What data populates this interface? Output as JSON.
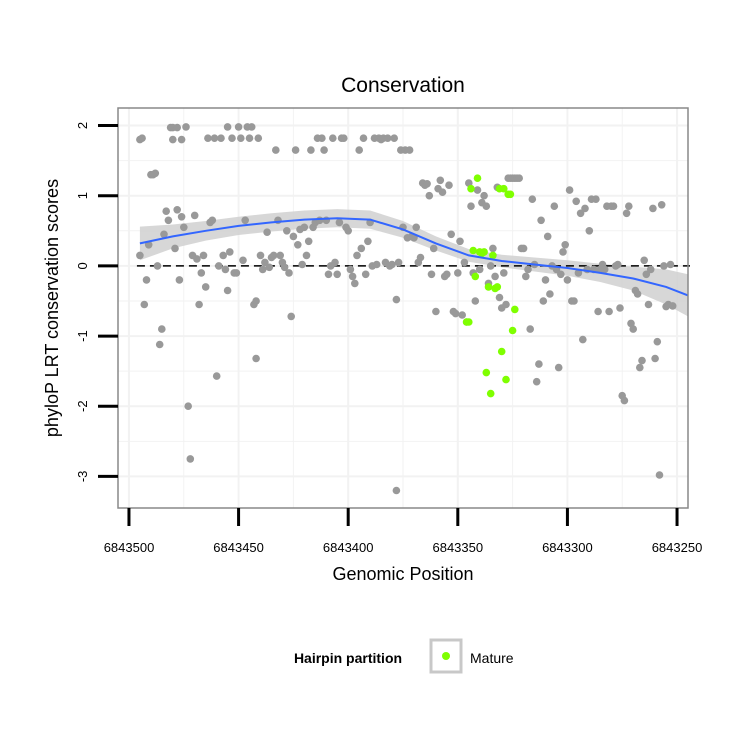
{
  "chart_data": {
    "type": "scatter",
    "title": "Conservation",
    "xlabel": "Genomic Position",
    "ylabel": "phyloP LRT conservation scores",
    "xlim": [
      6843505,
      6843245
    ],
    "ylim": [
      -3.45,
      2.25
    ],
    "x_reversed": true,
    "x_ticks": [
      6843500,
      6843450,
      6843400,
      6843350,
      6843300,
      6843250
    ],
    "x_tick_labels": [
      "6843500",
      "6843450",
      "6843400",
      "6843350",
      "6843300",
      "6843250"
    ],
    "y_ticks": [
      -3,
      -2,
      -1,
      0,
      1,
      2
    ],
    "y_tick_labels": [
      "-3",
      "-2",
      "-1",
      "0",
      "1",
      "2"
    ],
    "reference_line": {
      "y": 0,
      "style": "dashed",
      "color": "#000000"
    },
    "colors": {
      "other": "#999999",
      "mature": "#7fff00",
      "smooth_line": "#3366ff",
      "ribbon": "#d0d0d0",
      "panel_border": "#888888",
      "grid": "#f2f2f2"
    },
    "legend": {
      "title": "Hairpin partition",
      "entries": [
        {
          "label": "Mature",
          "color": "#7fff00"
        }
      ],
      "position": "bottom"
    },
    "smooth": {
      "x": [
        6843495,
        6843480,
        6843465,
        6843450,
        6843435,
        6843420,
        6843405,
        6843390,
        6843375,
        6843360,
        6843345,
        6843330,
        6843315,
        6843300,
        6843285,
        6843270,
        6843255,
        6843245
      ],
      "y": [
        0.32,
        0.42,
        0.5,
        0.57,
        0.62,
        0.66,
        0.68,
        0.66,
        0.52,
        0.32,
        0.15,
        0.07,
        0.02,
        -0.03,
        -0.1,
        -0.18,
        -0.3,
        -0.42
      ],
      "lower": [
        0.08,
        0.25,
        0.36,
        0.44,
        0.49,
        0.53,
        0.55,
        0.53,
        0.4,
        0.22,
        0.06,
        -0.02,
        -0.08,
        -0.14,
        -0.23,
        -0.35,
        -0.55,
        -0.72
      ],
      "upper": [
        0.56,
        0.59,
        0.64,
        0.7,
        0.75,
        0.79,
        0.81,
        0.79,
        0.64,
        0.42,
        0.24,
        0.16,
        0.12,
        0.08,
        0.03,
        -0.01,
        -0.05,
        -0.12
      ]
    },
    "series": [
      {
        "name": "Other",
        "color": "#999999",
        "points": [
          [
            6843495,
            0.15
          ],
          [
            6843495,
            1.8
          ],
          [
            6843494,
            1.82
          ],
          [
            6843493,
            -0.55
          ],
          [
            6843492,
            -0.2
          ],
          [
            6843491,
            0.3
          ],
          [
            6843490,
            1.3
          ],
          [
            6843489,
            1.3
          ],
          [
            6843488,
            1.32
          ],
          [
            6843487,
            0.0
          ],
          [
            6843486,
            -1.12
          ],
          [
            6843485,
            -0.9
          ],
          [
            6843484,
            0.45
          ],
          [
            6843483,
            0.78
          ],
          [
            6843482,
            0.65
          ],
          [
            6843481,
            1.97
          ],
          [
            6843480,
            1.97
          ],
          [
            6843480,
            1.8
          ],
          [
            6843479,
            0.25
          ],
          [
            6843478,
            1.97
          ],
          [
            6843478,
            0.8
          ],
          [
            6843477,
            -0.2
          ],
          [
            6843476,
            1.8
          ],
          [
            6843476,
            0.7
          ],
          [
            6843475,
            0.55
          ],
          [
            6843474,
            1.98
          ],
          [
            6843473,
            -2.0
          ],
          [
            6843472,
            -2.75
          ],
          [
            6843471,
            0.15
          ],
          [
            6843470,
            0.72
          ],
          [
            6843469,
            0.1
          ],
          [
            6843468,
            -0.55
          ],
          [
            6843467,
            -0.1
          ],
          [
            6843466,
            0.15
          ],
          [
            6843465,
            -0.3
          ],
          [
            6843464,
            1.82
          ],
          [
            6843463,
            0.62
          ],
          [
            6843462,
            0.65
          ],
          [
            6843461,
            1.82
          ],
          [
            6843460,
            -1.57
          ],
          [
            6843459,
            0.0
          ],
          [
            6843458,
            1.82
          ],
          [
            6843457,
            0.15
          ],
          [
            6843456,
            -0.05
          ],
          [
            6843455,
            -0.35
          ],
          [
            6843455,
            1.98
          ],
          [
            6843454,
            0.2
          ],
          [
            6843453,
            1.82
          ],
          [
            6843452,
            -0.1
          ],
          [
            6843451,
            -0.1
          ],
          [
            6843450,
            1.98
          ],
          [
            6843449,
            1.82
          ],
          [
            6843448,
            0.08
          ],
          [
            6843447,
            0.65
          ],
          [
            6843446,
            1.98
          ],
          [
            6843445,
            1.82
          ],
          [
            6843444,
            1.98
          ],
          [
            6843443,
            -0.55
          ],
          [
            6843442,
            -0.5
          ],
          [
            6843442,
            -1.32
          ],
          [
            6843441,
            1.82
          ],
          [
            6843440,
            0.15
          ],
          [
            6843439,
            -0.05
          ],
          [
            6843438,
            0.05
          ],
          [
            6843437,
            0.48
          ],
          [
            6843436,
            -0.02
          ],
          [
            6843435,
            0.12
          ],
          [
            6843434,
            0.15
          ],
          [
            6843433,
            1.65
          ],
          [
            6843432,
            0.65
          ],
          [
            6843431,
            0.15
          ],
          [
            6843430,
            0.05
          ],
          [
            6843429,
            -0.02
          ],
          [
            6843428,
            0.5
          ],
          [
            6843427,
            -0.1
          ],
          [
            6843426,
            -0.72
          ],
          [
            6843425,
            0.42
          ],
          [
            6843424,
            1.65
          ],
          [
            6843423,
            0.3
          ],
          [
            6843422,
            0.52
          ],
          [
            6843421,
            0.02
          ],
          [
            6843420,
            0.55
          ],
          [
            6843419,
            0.15
          ],
          [
            6843418,
            0.35
          ],
          [
            6843417,
            1.65
          ],
          [
            6843416,
            0.55
          ],
          [
            6843415,
            0.62
          ],
          [
            6843414,
            1.82
          ],
          [
            6843413,
            0.65
          ],
          [
            6843412,
            1.82
          ],
          [
            6843411,
            1.65
          ],
          [
            6843410,
            0.65
          ],
          [
            6843409,
            -0.12
          ],
          [
            6843408,
            0.0
          ],
          [
            6843407,
            1.82
          ],
          [
            6843406,
            0.05
          ],
          [
            6843405,
            -0.12
          ],
          [
            6843404,
            0.62
          ],
          [
            6843403,
            1.82
          ],
          [
            6843402,
            1.82
          ],
          [
            6843401,
            0.55
          ],
          [
            6843400,
            0.5
          ],
          [
            6843399,
            -0.05
          ],
          [
            6843398,
            -0.15
          ],
          [
            6843397,
            -0.25
          ],
          [
            6843396,
            0.15
          ],
          [
            6843395,
            1.65
          ],
          [
            6843394,
            0.25
          ],
          [
            6843393,
            1.82
          ],
          [
            6843392,
            -0.12
          ],
          [
            6843391,
            0.35
          ],
          [
            6843390,
            0.62
          ],
          [
            6843389,
            0.0
          ],
          [
            6843388,
            1.82
          ],
          [
            6843387,
            0.02
          ],
          [
            6843386,
            1.82
          ],
          [
            6843385,
            1.8
          ],
          [
            6843384,
            1.82
          ],
          [
            6843383,
            0.05
          ],
          [
            6843382,
            1.82
          ],
          [
            6843381,
            0.0
          ],
          [
            6843380,
            0.02
          ],
          [
            6843379,
            1.82
          ],
          [
            6843378,
            -3.2
          ],
          [
            6843378,
            -0.48
          ],
          [
            6843377,
            0.05
          ],
          [
            6843376,
            1.65
          ],
          [
            6843375,
            0.55
          ],
          [
            6843374,
            1.65
          ],
          [
            6843373,
            0.4
          ],
          [
            6843372,
            1.65
          ],
          [
            6843371,
            0.42
          ],
          [
            6843370,
            0.4
          ],
          [
            6843369,
            0.55
          ],
          [
            6843368,
            0.05
          ],
          [
            6843367,
            0.12
          ],
          [
            6843366,
            1.18
          ],
          [
            6843365,
            1.15
          ],
          [
            6843364,
            1.17
          ],
          [
            6843363,
            1.0
          ],
          [
            6843362,
            -0.12
          ],
          [
            6843361,
            0.25
          ],
          [
            6843360,
            -0.65
          ],
          [
            6843359,
            1.1
          ],
          [
            6843358,
            1.22
          ],
          [
            6843357,
            1.05
          ],
          [
            6843356,
            -0.15
          ],
          [
            6843355,
            -0.12
          ],
          [
            6843354,
            1.15
          ],
          [
            6843353,
            0.45
          ],
          [
            6843352,
            -0.65
          ],
          [
            6843351,
            -0.68
          ],
          [
            6843350,
            -0.1
          ],
          [
            6843349,
            0.35
          ],
          [
            6843348,
            -0.7
          ],
          [
            6843347,
            0.05
          ],
          [
            6843346,
            -0.8
          ],
          [
            6843345,
            1.18
          ],
          [
            6843344,
            0.85
          ],
          [
            6843343,
            -0.1
          ],
          [
            6843342,
            -0.5
          ],
          [
            6843341,
            1.08
          ],
          [
            6843340,
            -0.05
          ],
          [
            6843339,
            0.9
          ],
          [
            6843338,
            1.0
          ],
          [
            6843337,
            0.85
          ],
          [
            6843336,
            -0.25
          ],
          [
            6843335,
            0.0
          ],
          [
            6843334,
            0.25
          ],
          [
            6843333,
            -0.15
          ],
          [
            6843332,
            1.12
          ],
          [
            6843331,
            -0.45
          ],
          [
            6843330,
            -0.6
          ],
          [
            6843329,
            -0.1
          ],
          [
            6843328,
            -0.55
          ],
          [
            6843327,
            1.25
          ],
          [
            6843326,
            1.25
          ],
          [
            6843325,
            1.25
          ],
          [
            6843324,
            1.25
          ],
          [
            6843323,
            1.25
          ],
          [
            6843322,
            1.25
          ],
          [
            6843321,
            0.25
          ],
          [
            6843320,
            0.25
          ],
          [
            6843319,
            -0.15
          ],
          [
            6843318,
            -0.05
          ],
          [
            6843317,
            -0.9
          ],
          [
            6843316,
            0.95
          ],
          [
            6843315,
            0.02
          ],
          [
            6843314,
            -1.65
          ],
          [
            6843313,
            -1.4
          ],
          [
            6843312,
            0.65
          ],
          [
            6843311,
            -0.5
          ],
          [
            6843310,
            -0.2
          ],
          [
            6843309,
            0.42
          ],
          [
            6843308,
            -0.4
          ],
          [
            6843307,
            0.0
          ],
          [
            6843306,
            0.85
          ],
          [
            6843305,
            -0.05
          ],
          [
            6843304,
            -1.45
          ],
          [
            6843303,
            -0.12
          ],
          [
            6843302,
            0.2
          ],
          [
            6843301,
            0.3
          ],
          [
            6843300,
            -0.2
          ],
          [
            6843299,
            1.08
          ],
          [
            6843298,
            -0.5
          ],
          [
            6843297,
            -0.5
          ],
          [
            6843296,
            0.92
          ],
          [
            6843295,
            -0.1
          ],
          [
            6843294,
            0.75
          ],
          [
            6843293,
            -1.05
          ],
          [
            6843292,
            0.82
          ],
          [
            6843291,
            -0.05
          ],
          [
            6843290,
            0.5
          ],
          [
            6843289,
            0.95
          ],
          [
            6843288,
            -0.05
          ],
          [
            6843287,
            0.95
          ],
          [
            6843286,
            -0.65
          ],
          [
            6843285,
            -0.05
          ],
          [
            6843284,
            0.02
          ],
          [
            6843283,
            -0.05
          ],
          [
            6843282,
            0.85
          ],
          [
            6843281,
            -0.65
          ],
          [
            6843280,
            0.85
          ],
          [
            6843279,
            0.85
          ],
          [
            6843278,
            0.0
          ],
          [
            6843277,
            0.02
          ],
          [
            6843276,
            -0.6
          ],
          [
            6843275,
            -1.85
          ],
          [
            6843274,
            -1.92
          ],
          [
            6843273,
            0.75
          ],
          [
            6843272,
            0.85
          ],
          [
            6843271,
            -0.82
          ],
          [
            6843270,
            -0.9
          ],
          [
            6843269,
            -0.35
          ],
          [
            6843268,
            -0.4
          ],
          [
            6843267,
            -1.45
          ],
          [
            6843266,
            -1.35
          ],
          [
            6843265,
            0.08
          ],
          [
            6843264,
            -0.12
          ],
          [
            6843263,
            -0.55
          ],
          [
            6843262,
            -0.05
          ],
          [
            6843261,
            0.82
          ],
          [
            6843260,
            -1.32
          ],
          [
            6843259,
            -1.08
          ],
          [
            6843258,
            -2.98
          ],
          [
            6843257,
            0.87
          ],
          [
            6843256,
            0.0
          ],
          [
            6843255,
            -0.58
          ],
          [
            6843254,
            -0.55
          ],
          [
            6843253,
            0.02
          ],
          [
            6843252,
            -0.57
          ]
        ]
      },
      {
        "name": "Mature",
        "color": "#7fff00",
        "points": [
          [
            6843346,
            -0.8
          ],
          [
            6843345,
            -0.8
          ],
          [
            6843344,
            1.1
          ],
          [
            6843343,
            0.22
          ],
          [
            6843342,
            -0.15
          ],
          [
            6843341,
            1.25
          ],
          [
            6843340,
            0.2
          ],
          [
            6843339,
            0.18
          ],
          [
            6843338,
            0.2
          ],
          [
            6843337,
            -1.52
          ],
          [
            6843336,
            -0.3
          ],
          [
            6843335,
            -1.82
          ],
          [
            6843334,
            0.15
          ],
          [
            6843333,
            -0.32
          ],
          [
            6843332,
            -0.3
          ],
          [
            6843331,
            1.1
          ],
          [
            6843330,
            -1.22
          ],
          [
            6843329,
            1.1
          ],
          [
            6843328,
            -1.62
          ],
          [
            6843327,
            1.02
          ],
          [
            6843326,
            1.02
          ],
          [
            6843325,
            -0.92
          ],
          [
            6843324,
            -0.62
          ]
        ]
      }
    ]
  }
}
